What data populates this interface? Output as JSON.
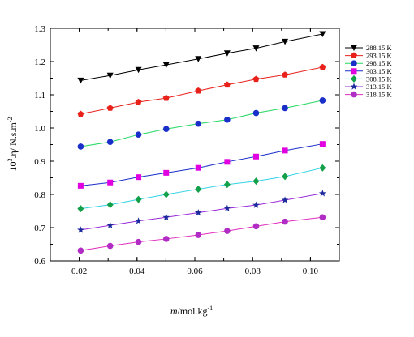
{
  "chart_data": {
    "type": "line",
    "xlabel_italic": "m",
    "xlabel_rest": "/mol.kg",
    "xlabel_sup": "-1",
    "ylabel_pre": "10",
    "ylabel_sup1": "3",
    "ylabel_mid": ".η/ N.s.m",
    "ylabel_sup2": "-2",
    "xlim": [
      0.01,
      0.11
    ],
    "ylim": [
      0.6,
      1.3
    ],
    "xticks": [
      0.02,
      0.04,
      0.06,
      0.08,
      0.1
    ],
    "xtick_labels": [
      "0.02",
      "0.04",
      "0.06",
      "0.08",
      "0.10"
    ],
    "yticks": [
      0.6,
      0.7,
      0.8,
      0.9,
      1.0,
      1.1,
      1.2,
      1.3
    ],
    "ytick_labels": [
      "0.6",
      "0.7",
      "0.8",
      "0.9",
      "1.0",
      "1.1",
      "1.2",
      "1.3"
    ],
    "legend_position": "top-right",
    "grid": false,
    "x": [
      0.0205,
      0.0307,
      0.0405,
      0.0501,
      0.0612,
      0.0712,
      0.0812,
      0.0912,
      0.1042
    ],
    "series": [
      {
        "name": "288.15 K",
        "color": "#000000",
        "marker": "triangle-down",
        "values": [
          1.143,
          1.158,
          1.175,
          1.19,
          1.208,
          1.225,
          1.24,
          1.26,
          1.283
        ]
      },
      {
        "name": "293.15 K",
        "color": "#e8221b",
        "marker": "pentagon",
        "values": [
          1.042,
          1.06,
          1.078,
          1.09,
          1.112,
          1.13,
          1.147,
          1.16,
          1.183
        ]
      },
      {
        "name": "298.15 K",
        "color": "#1a2ec9",
        "line_color": "#22d860",
        "marker": "circle",
        "values": [
          0.944,
          0.958,
          0.98,
          0.997,
          1.013,
          1.025,
          1.045,
          1.06,
          1.083
        ]
      },
      {
        "name": "303.15 K",
        "color": "#e000e0",
        "line_color": "#1a2ec9",
        "marker": "square",
        "values": [
          0.826,
          0.836,
          0.852,
          0.865,
          0.88,
          0.898,
          0.914,
          0.932,
          0.952
        ]
      },
      {
        "name": "308.15 K",
        "color": "#13a04a",
        "line_color": "#33d2e6",
        "marker": "diamond",
        "values": [
          0.757,
          0.769,
          0.785,
          0.8,
          0.816,
          0.83,
          0.84,
          0.854,
          0.88
        ]
      },
      {
        "name": "313.15 K",
        "color": "#1d2a9c",
        "line_color": "#9a2bd8",
        "marker": "star",
        "values": [
          0.693,
          0.707,
          0.72,
          0.731,
          0.745,
          0.758,
          0.768,
          0.783,
          0.803
        ]
      },
      {
        "name": "318.15 K",
        "color": "#b02cc4",
        "line_color": "#e02dbd",
        "marker": "circle",
        "values": [
          0.631,
          0.645,
          0.657,
          0.666,
          0.678,
          0.69,
          0.704,
          0.718,
          0.731
        ]
      }
    ]
  }
}
